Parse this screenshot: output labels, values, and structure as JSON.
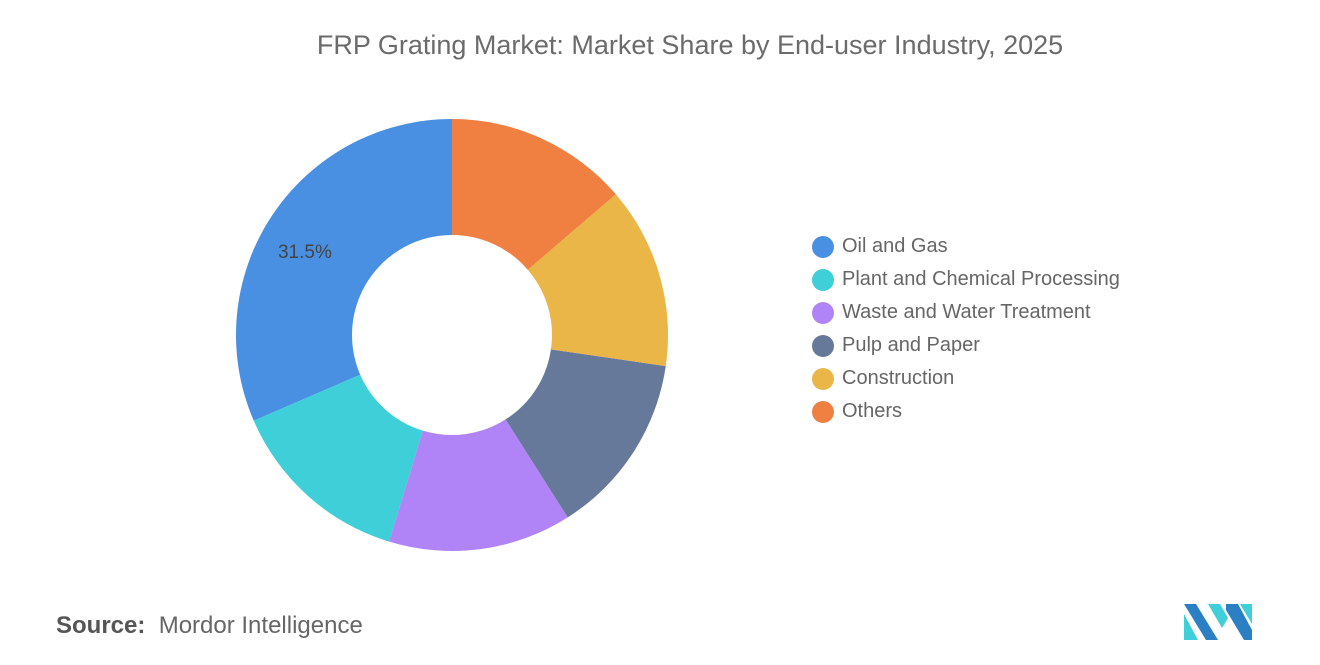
{
  "chart_data": {
    "type": "pie",
    "title": "FRP Grating Market: Market Share by End-user Industry, 2025",
    "donut": true,
    "categories": [
      "Oil and Gas",
      "Plant and Chemical Processing",
      "Waste and Water Treatment",
      "Pulp and Paper",
      "Construction",
      "Others"
    ],
    "values": [
      31.5,
      13.8,
      13.7,
      13.7,
      13.6,
      13.7
    ],
    "colors": [
      "#4a90e2",
      "#3ecfd9",
      "#b084f7",
      "#66799b",
      "#eab648",
      "#f08042"
    ],
    "data_labels": {
      "Oil and Gas": "31.5%"
    },
    "legend_position": "right"
  },
  "source": {
    "label": "Source:",
    "value": "Mordor Intelligence"
  }
}
